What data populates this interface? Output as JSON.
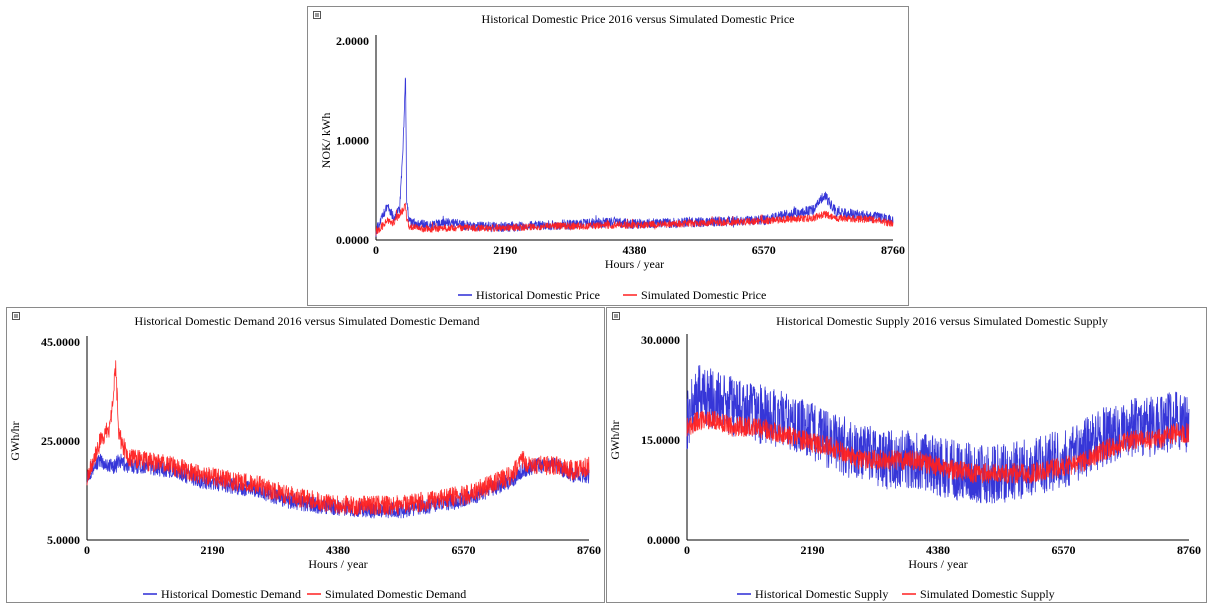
{
  "chart_data": [
    {
      "type": "line",
      "title": "Historical Domestic Price 2016 versus Simulated Domestic Price",
      "xlabel": "Hours / year",
      "ylabel": "NOK/ kWh",
      "xlim": [
        0,
        8760
      ],
      "ylim": [
        0,
        2
      ],
      "xticks": [
        "0",
        "2190",
        "4380",
        "6570",
        "8760"
      ],
      "yticks": [
        "0.0000",
        "1.0000",
        "2.0000"
      ],
      "x": [
        0,
        200,
        300,
        400,
        460,
        500,
        520,
        560,
        700,
        900,
        1200,
        1600,
        2000,
        2500,
        3000,
        3500,
        4000,
        4380,
        5000,
        5500,
        6000,
        6570,
        7000,
        7400,
        7600,
        7800,
        8200,
        8500,
        8760
      ],
      "series": [
        {
          "name": "Historical Domestic Price",
          "color": "#2b2bd6",
          "values": [
            0.08,
            0.35,
            0.22,
            0.3,
            0.95,
            1.68,
            0.4,
            0.18,
            0.16,
            0.14,
            0.18,
            0.14,
            0.13,
            0.14,
            0.15,
            0.16,
            0.18,
            0.16,
            0.17,
            0.18,
            0.19,
            0.2,
            0.26,
            0.3,
            0.45,
            0.28,
            0.25,
            0.23,
            0.2
          ]
        },
        {
          "name": "Simulated Domestic Price",
          "color": "#ff2020",
          "values": [
            0.08,
            0.2,
            0.18,
            0.26,
            0.3,
            0.35,
            0.22,
            0.14,
            0.12,
            0.11,
            0.12,
            0.12,
            0.12,
            0.13,
            0.14,
            0.14,
            0.15,
            0.15,
            0.16,
            0.17,
            0.18,
            0.19,
            0.21,
            0.22,
            0.26,
            0.22,
            0.21,
            0.2,
            0.16
          ]
        }
      ],
      "legend": "bottom-center"
    },
    {
      "type": "line",
      "title": "Historical Domestic Demand 2016 versus Simulated Domestic Demand",
      "xlabel": "Hours / year",
      "ylabel": "GWh/hr",
      "xlim": [
        0,
        8760
      ],
      "ylim": [
        5,
        45
      ],
      "xticks": [
        "0",
        "2190",
        "4380",
        "6570",
        "8760"
      ],
      "yticks": [
        "5.0000",
        "25.0000",
        "45.0000"
      ],
      "x": [
        0,
        200,
        400,
        500,
        560,
        700,
        1000,
        1500,
        2000,
        2500,
        3000,
        3500,
        4000,
        4380,
        5000,
        5500,
        6000,
        6570,
        7000,
        7400,
        7600,
        7800,
        8200,
        8500,
        8760
      ],
      "series": [
        {
          "name": "Historical Domestic Demand",
          "color": "#2b2bd6",
          "values": [
            18,
            21,
            20,
            20,
            21,
            20,
            20,
            19,
            17,
            16,
            15,
            13,
            12,
            11.5,
            11,
            11,
            12,
            13,
            15,
            17,
            19,
            20,
            20,
            18,
            18
          ]
        },
        {
          "name": "Simulated Domestic Demand",
          "color": "#ff2020",
          "values": [
            18,
            24,
            28,
            40,
            26,
            22,
            21,
            20,
            18,
            17,
            16,
            14,
            13,
            12,
            12,
            12,
            13,
            14,
            16,
            18,
            21,
            20,
            20,
            19,
            20
          ]
        }
      ],
      "legend": "bottom-center"
    },
    {
      "type": "line",
      "title": "Historical Domestic Supply 2016 versus Simulated Domestic Supply",
      "xlabel": "Hours / year",
      "ylabel": "GWh/hr",
      "xlim": [
        0,
        8760
      ],
      "ylim": [
        0,
        30
      ],
      "xticks": [
        "0",
        "2190",
        "4380",
        "6570",
        "8760"
      ],
      "yticks": [
        "0.0000",
        "15.0000",
        "30.0000"
      ],
      "x": [
        0,
        200,
        500,
        800,
        1200,
        1600,
        2000,
        2500,
        3000,
        3500,
        4000,
        4380,
        5000,
        5500,
        6000,
        6570,
        7000,
        7400,
        7800,
        8200,
        8500,
        8760
      ],
      "series": [
        {
          "name": "Historical Domestic Supply",
          "color": "#2b2bd6",
          "values": [
            18,
            22,
            21,
            20,
            19,
            18,
            17,
            15,
            13,
            12,
            12,
            11,
            10,
            10,
            11,
            12,
            14,
            16,
            17,
            17,
            18,
            17
          ]
        },
        {
          "name": "Simulated Domestic Supply",
          "color": "#ff2020",
          "values": [
            17,
            18,
            18,
            17,
            17,
            16,
            15,
            14,
            12,
            12,
            12,
            11,
            10,
            10,
            10,
            11,
            12,
            14,
            15,
            15,
            16,
            16
          ]
        }
      ],
      "legend": "bottom-center"
    }
  ]
}
